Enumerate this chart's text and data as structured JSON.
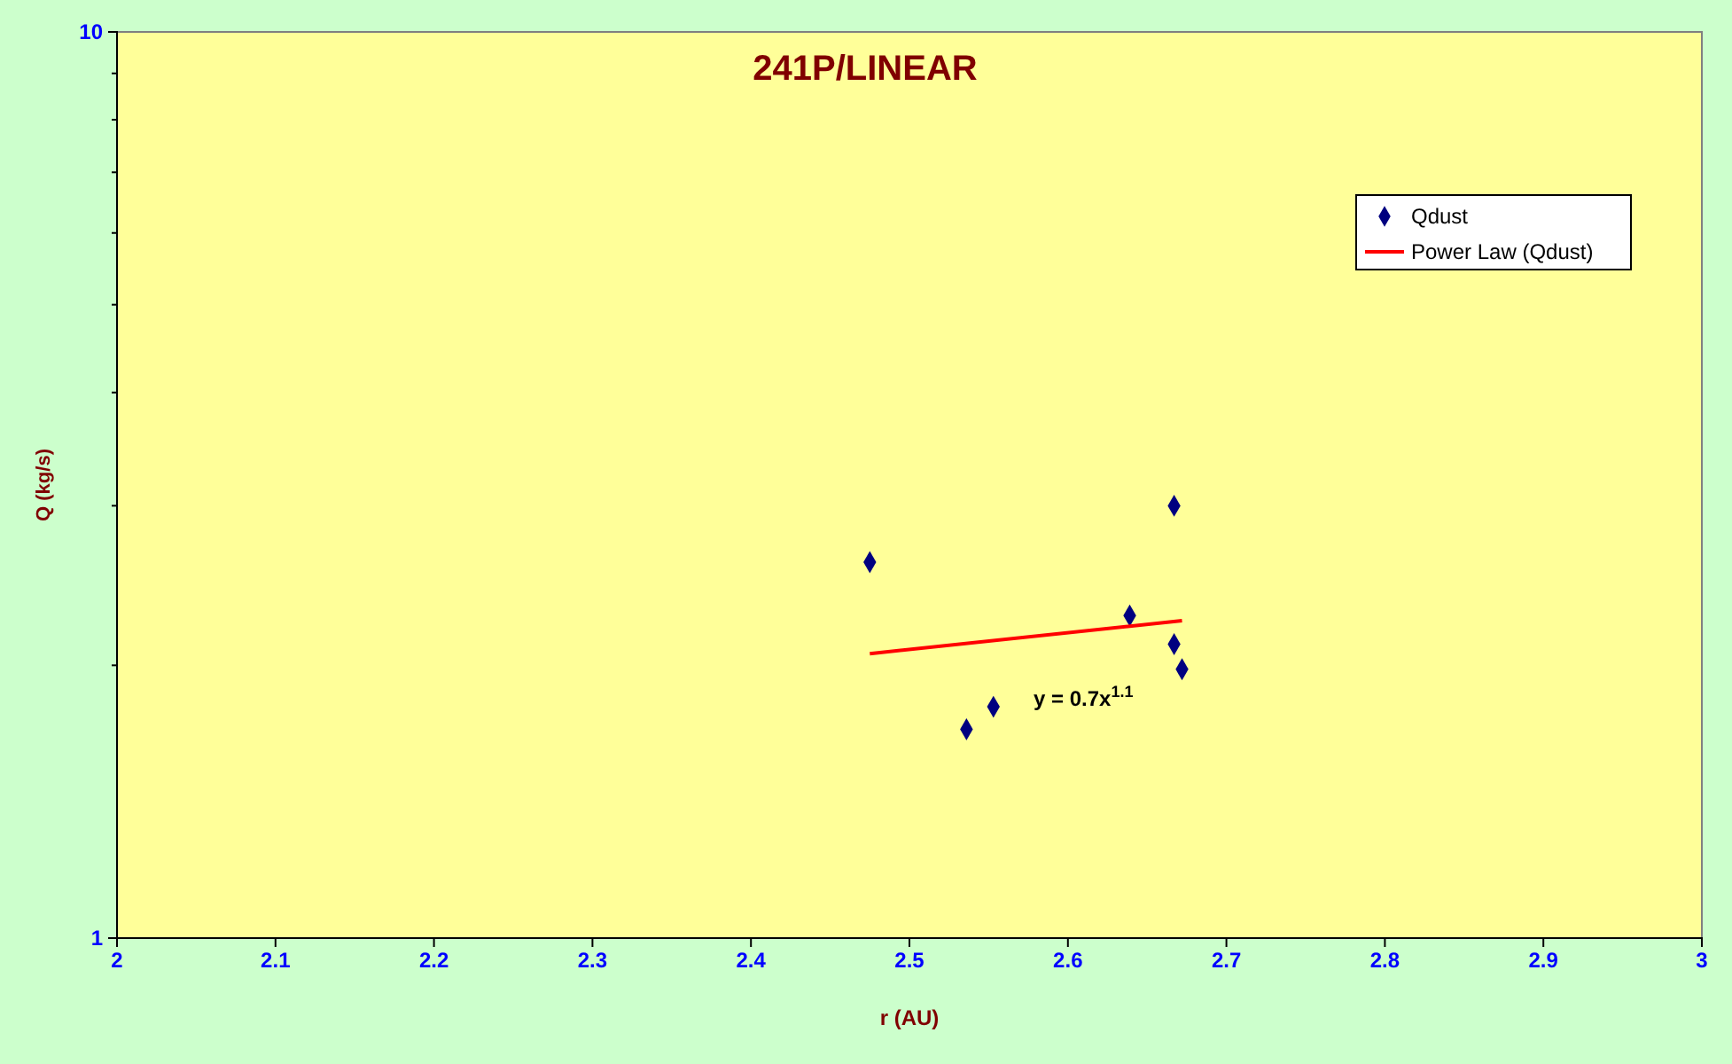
{
  "chart_data": {
    "type": "scatter",
    "title": "241P/LINEAR",
    "xlabel": "r (AU)",
    "ylabel": "Q (kg/s)",
    "log": "y",
    "grid": false,
    "legend": "top right",
    "xlim": [
      2,
      3
    ],
    "xticks": [
      2,
      2.1,
      2.2,
      2.3,
      2.4,
      2.5,
      2.6,
      2.7,
      2.8,
      2.9,
      3
    ],
    "ylim": [
      1,
      10
    ],
    "yticks": [
      1,
      {
        "value": 2,
        "label": null
      },
      {
        "value": 3,
        "label": null
      },
      {
        "value": 4,
        "label": null
      },
      {
        "value": 5,
        "label": null
      },
      {
        "value": 6,
        "label": null
      },
      {
        "value": 7,
        "label": null
      },
      {
        "value": 8,
        "label": null
      },
      {
        "value": 9,
        "label": null
      },
      10
    ],
    "annotations": [
      "y = 0.7x$^{1.1}$"
    ],
    "series": [
      {
        "name": "Qdust",
        "color": "#000080",
        "marker": "diamond",
        "x": [
          2.475,
          2.536,
          2.553,
          2.639,
          2.667,
          2.667,
          2.672
        ],
        "values": [
          2.6,
          1.7,
          1.8,
          2.27,
          3.0,
          2.11,
          1.98
        ]
      },
      {
        "name": "Power Law (Qdust)",
        "type": "line",
        "color": "#ff0000",
        "marker": "none",
        "line_style": "solid",
        "x": [
          2.475,
          2.672
        ],
        "values": [
          2.06,
          2.24
        ]
      }
    ]
  }
}
